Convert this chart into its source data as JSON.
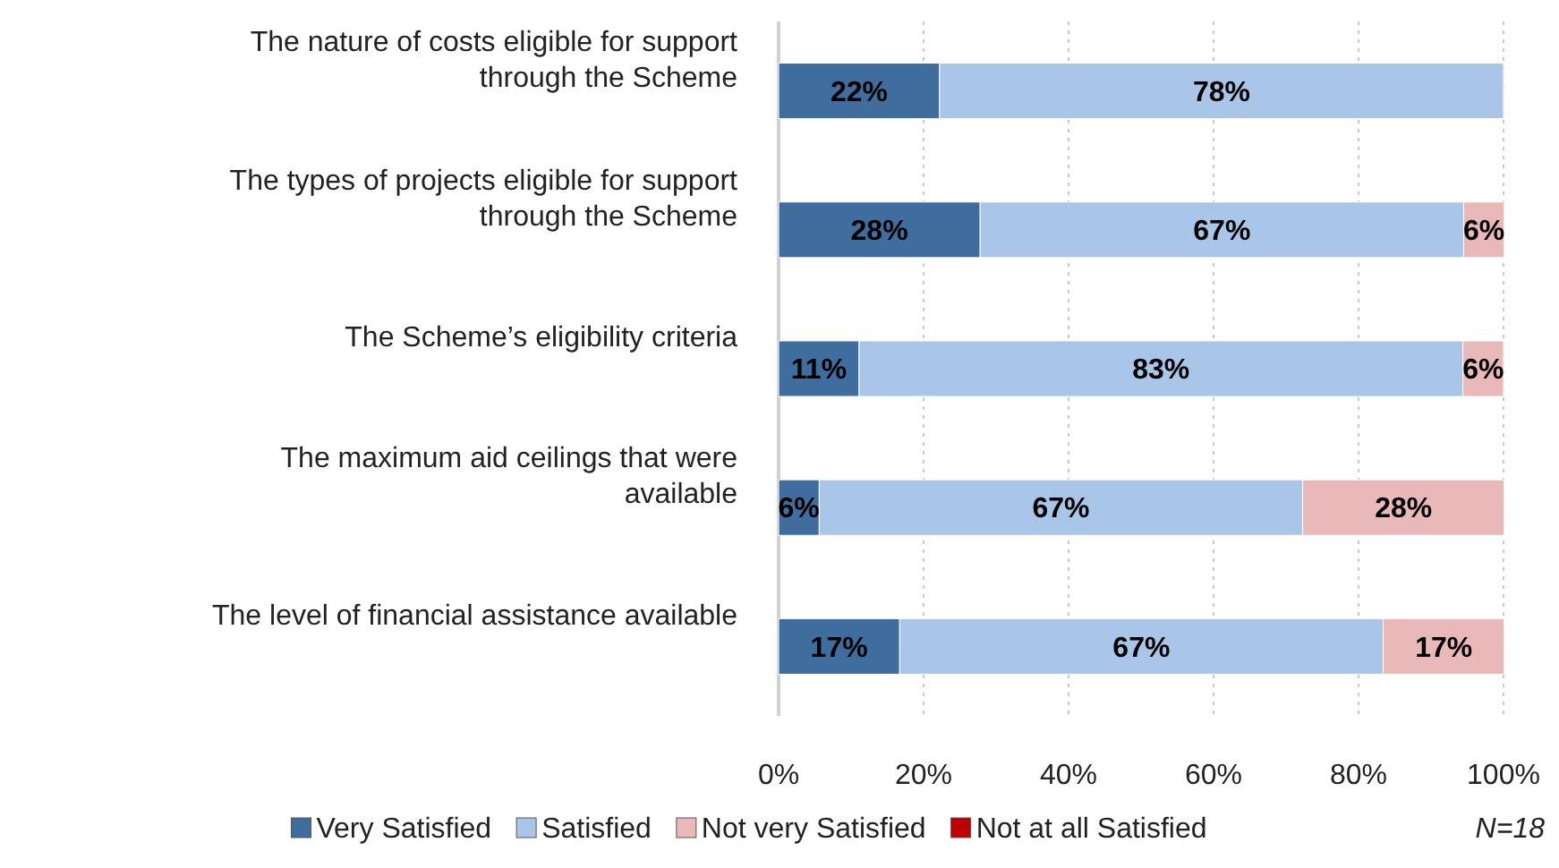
{
  "chart_data": {
    "type": "bar",
    "orientation": "horizontal",
    "stacked": true,
    "categories": [
      "The nature of costs eligible for support through the Scheme",
      "The types of projects eligible for support through the Scheme",
      "The Scheme’s eligibility criteria",
      "The maximum aid ceilings that were available",
      "The level of financial assistance available"
    ],
    "series": [
      {
        "name": "Very Satisfied",
        "color": "#3f6d9e",
        "values": [
          22.2,
          27.8,
          11.1,
          5.6,
          16.7
        ],
        "value_labels": [
          "22%",
          "28%",
          "11%",
          "6%",
          "17%"
        ]
      },
      {
        "name": "Satisfied",
        "color": "#a9c6e8",
        "values": [
          77.8,
          66.7,
          83.3,
          66.7,
          66.7
        ],
        "value_labels": [
          "78%",
          "67%",
          "83%",
          "67%",
          "67%"
        ]
      },
      {
        "name": "Not very Satisfied",
        "color": "#e8b9b8",
        "values": [
          null,
          5.6,
          5.6,
          27.8,
          16.7
        ],
        "value_labels": [
          null,
          "6%",
          "6%",
          "28%",
          "17%"
        ]
      },
      {
        "name": "Not at all Satisfied",
        "color": "#c00000",
        "values": [
          null,
          null,
          null,
          null,
          null
        ]
      }
    ],
    "xlim": [
      0,
      100
    ],
    "xticks": [
      {
        "value": 0,
        "label": "0%"
      },
      {
        "value": 20,
        "label": "20%"
      },
      {
        "value": 40,
        "label": "40%"
      },
      {
        "value": 60,
        "label": "60%"
      },
      {
        "value": 80,
        "label": "80%"
      },
      {
        "value": 100,
        "label": "100%"
      }
    ],
    "grid": "x",
    "legend": "bottom",
    "annotations": [
      "N=18"
    ]
  }
}
